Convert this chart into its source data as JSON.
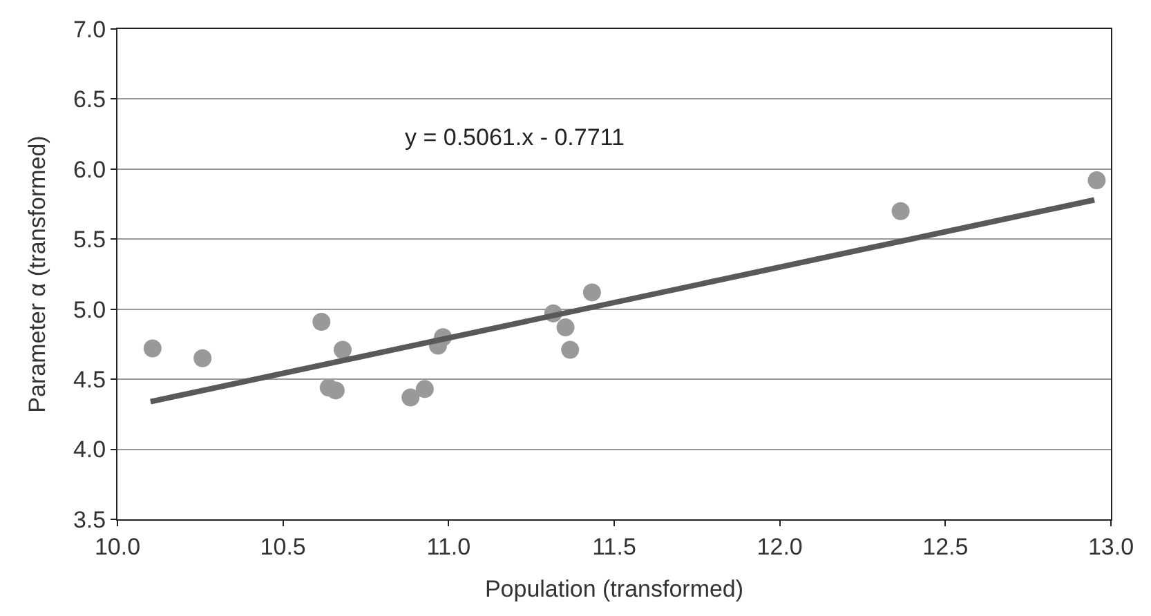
{
  "chart_data": {
    "type": "scatter",
    "xlabel": "Population (transformed)",
    "ylabel": "Parameter α (transformed)",
    "annotations": [
      "y = 0.5061.x - 0.7711"
    ],
    "series": [
      {
        "color": "#999999",
        "marker": "circle",
        "x": [
          10.106,
          10.257,
          10.616,
          10.68,
          10.638,
          10.659,
          10.885,
          10.928,
          10.968,
          10.983,
          11.316,
          11.353,
          11.367,
          11.433,
          12.365,
          12.957
        ],
        "values": [
          4.72,
          4.65,
          4.91,
          4.71,
          4.44,
          4.42,
          4.37,
          4.43,
          4.74,
          4.8,
          4.97,
          4.87,
          4.71,
          5.12,
          5.7,
          5.92
        ]
      },
      {
        "type": "line",
        "marker": "none",
        "color": "#595959",
        "x": [
          10.1,
          12.95
        ],
        "values": [
          4.34,
          5.78
        ]
      }
    ],
    "xlim": [
      10.0,
      13.0
    ],
    "xticks": [
      {
        "value": 10,
        "label": "10.0"
      },
      10.5,
      {
        "value": 11,
        "label": "11.0"
      },
      11.5,
      {
        "value": 12,
        "label": "12.0"
      },
      12.5,
      {
        "value": 13,
        "label": "13.0"
      }
    ],
    "ylim": [
      3.5,
      7.0
    ],
    "yticks": [
      3.5,
      {
        "value": 4,
        "label": "4.0"
      },
      4.5,
      {
        "value": 5,
        "label": "5.0"
      },
      5.5,
      {
        "value": 6,
        "label": "6.0"
      },
      6.5,
      {
        "value": 7,
        "label": "7.0"
      }
    ],
    "grid": "y"
  }
}
